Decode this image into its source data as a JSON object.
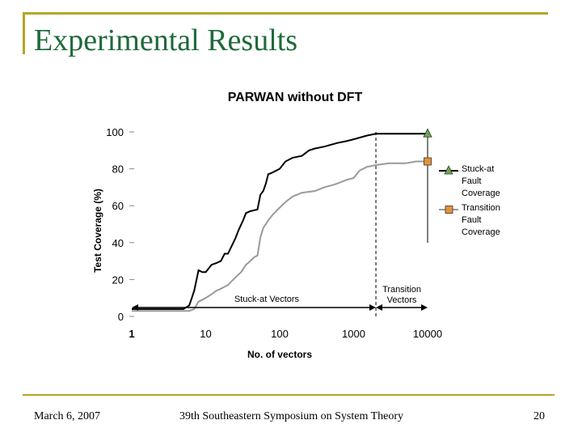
{
  "slide": {
    "title": "Experimental Results",
    "footer_date": "March 6, 2007",
    "footer_conference": "39th Southeastern Symposium on System Theory",
    "page_number": "20"
  },
  "colors": {
    "frame": "#b5a52a",
    "title": "#1f6a3a",
    "stuck_at_line": "#000000",
    "transition_line": "#9a9a9a",
    "stuck_at_marker": "#6aa84f",
    "transition_marker": "#e69138"
  },
  "chart_data": {
    "type": "line",
    "title": "PARWAN without DFT",
    "xlabel": "No. of vectors",
    "ylabel": "Test Coverage (%)",
    "x_scale": "log",
    "xlim": [
      1,
      10000
    ],
    "ylim": [
      0,
      100
    ],
    "x_ticks": [
      1,
      10,
      100,
      1000,
      10000
    ],
    "x_tick_labels": [
      "1",
      "10",
      "100",
      "1000",
      "10000"
    ],
    "y_ticks": [
      0,
      20,
      40,
      60,
      80,
      100
    ],
    "y_tick_labels": [
      "0",
      "20",
      "40",
      "60",
      "80",
      "100"
    ],
    "legend_position": "right",
    "series": [
      {
        "name": "Stuck-at Fault Coverage",
        "legend_lines": [
          "Stuck-at",
          "Fault",
          "Coverage"
        ],
        "marker": "triangle",
        "points": [
          [
            1,
            4
          ],
          [
            5,
            4
          ],
          [
            6,
            6
          ],
          [
            7,
            14
          ],
          [
            8,
            25
          ],
          [
            9,
            24
          ],
          [
            10,
            24
          ],
          [
            12,
            28
          ],
          [
            14,
            29
          ],
          [
            16,
            30
          ],
          [
            18,
            34
          ],
          [
            20,
            34
          ],
          [
            25,
            42
          ],
          [
            28,
            47
          ],
          [
            32,
            52
          ],
          [
            35,
            56
          ],
          [
            40,
            57
          ],
          [
            50,
            58
          ],
          [
            55,
            66
          ],
          [
            60,
            68
          ],
          [
            65,
            72
          ],
          [
            70,
            77
          ],
          [
            80,
            78
          ],
          [
            100,
            80
          ],
          [
            120,
            84
          ],
          [
            150,
            86
          ],
          [
            200,
            87
          ],
          [
            250,
            90
          ],
          [
            300,
            91
          ],
          [
            400,
            92
          ],
          [
            600,
            94
          ],
          [
            800,
            95
          ],
          [
            1000,
            96
          ],
          [
            1500,
            98
          ],
          [
            2000,
            99
          ],
          [
            3000,
            99
          ],
          [
            5000,
            99
          ],
          [
            7000,
            99
          ],
          [
            10000,
            99
          ]
        ]
      },
      {
        "name": "Transition Fault Coverage",
        "legend_lines": [
          "Transition",
          "Fault",
          "Coverage"
        ],
        "marker": "square",
        "points": [
          [
            1,
            3
          ],
          [
            6,
            3
          ],
          [
            7,
            4
          ],
          [
            8,
            8
          ],
          [
            10,
            10
          ],
          [
            12,
            12
          ],
          [
            14,
            14
          ],
          [
            16,
            15
          ],
          [
            20,
            17
          ],
          [
            25,
            21
          ],
          [
            30,
            24
          ],
          [
            35,
            28
          ],
          [
            40,
            30
          ],
          [
            45,
            32
          ],
          [
            50,
            33
          ],
          [
            55,
            43
          ],
          [
            60,
            48
          ],
          [
            70,
            52
          ],
          [
            80,
            55
          ],
          [
            100,
            59
          ],
          [
            120,
            62
          ],
          [
            150,
            65
          ],
          [
            200,
            67
          ],
          [
            300,
            68
          ],
          [
            400,
            70
          ],
          [
            500,
            71
          ],
          [
            600,
            72
          ],
          [
            800,
            74
          ],
          [
            1000,
            75
          ],
          [
            1200,
            79
          ],
          [
            1500,
            81
          ],
          [
            2000,
            82
          ],
          [
            3000,
            83
          ],
          [
            5000,
            83
          ],
          [
            7000,
            84
          ],
          [
            10000,
            84
          ]
        ]
      }
    ],
    "divider_x": 2000,
    "annotations": [
      {
        "text": "Stuck-at Vectors",
        "from_x": 1,
        "to_x": 2000
      },
      {
        "text_lines": [
          "Transition",
          "Vectors"
        ],
        "from_x": 2000,
        "to_x": 10000
      }
    ]
  }
}
